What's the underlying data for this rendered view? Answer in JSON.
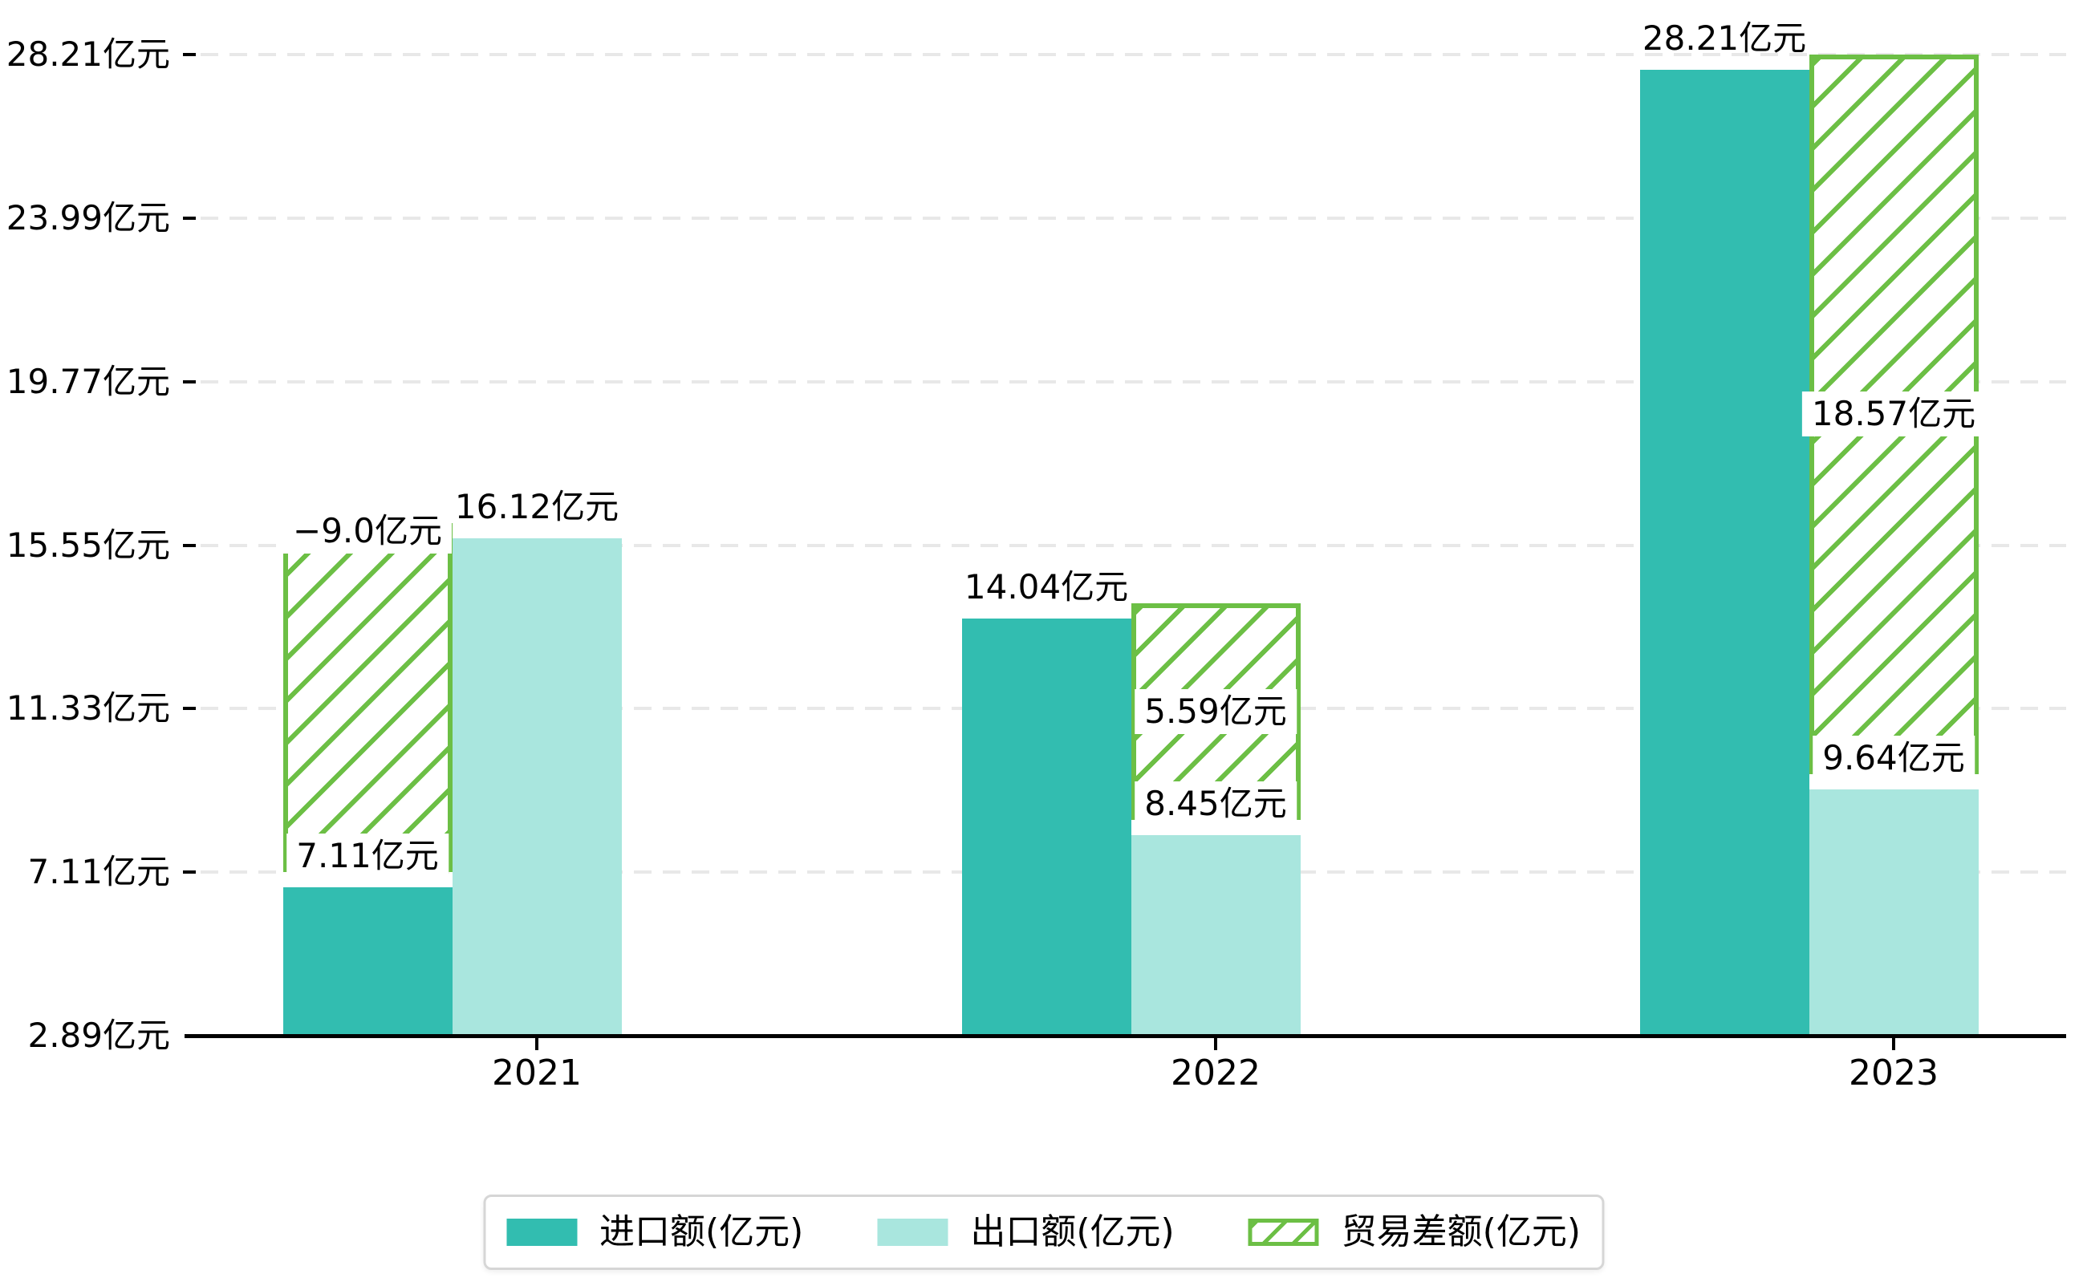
{
  "chart_data": {
    "type": "bar",
    "title": "",
    "categories": [
      "2021",
      "2022",
      "2023"
    ],
    "series": [
      {
        "name": "进口额(亿元)",
        "key": "import",
        "color": "#32bdb0",
        "values": [
          7.11,
          14.04,
          28.21
        ]
      },
      {
        "name": "出口额(亿元)",
        "key": "export",
        "color": "#a9e6de",
        "values": [
          16.12,
          8.45,
          9.64
        ]
      },
      {
        "name": "贸易差额(亿元)",
        "key": "difference",
        "color": "#6cbf45",
        "style": "hatched-bridge",
        "values": [
          -9.0,
          5.59,
          18.57
        ],
        "bridges": [
          {
            "from": 7.11,
            "to": 16.12,
            "slot": "import",
            "label_pos": "top"
          },
          {
            "from": 8.45,
            "to": 14.04,
            "slot": "export",
            "label_pos": "middle"
          },
          {
            "from": 9.64,
            "to": 28.21,
            "slot": "export",
            "label_pos": "middle"
          }
        ]
      }
    ],
    "bar_labels": {
      "import": [
        "7.11亿元",
        "14.04亿元",
        "28.21亿元"
      ],
      "export": [
        "16.12亿元",
        "8.45亿元",
        "9.64亿元"
      ],
      "difference": [
        "−9.0亿元",
        "5.59亿元",
        "18.57亿元"
      ]
    },
    "y_axis": {
      "min": 2.89,
      "max": 28.21,
      "tick_values": [
        2.89,
        7.11,
        11.33,
        15.55,
        19.77,
        23.99,
        28.21
      ],
      "tick_labels": [
        "2.89亿元",
        "7.11亿元",
        "11.33亿元",
        "15.55亿元",
        "19.77亿元",
        "23.99亿元",
        "28.21亿元"
      ]
    },
    "x_axis": {
      "tick_labels": [
        "2021",
        "2022",
        "2023"
      ]
    },
    "grid": {
      "horizontal": true,
      "style": "dashed",
      "color": "#e8e8e8"
    },
    "legend": {
      "position": "bottom",
      "entries": [
        "进口额(亿元)",
        "出口额(亿元)",
        "贸易差额(亿元)"
      ]
    }
  },
  "colors": {
    "import": "#32bdb0",
    "export": "#a9e6de",
    "difference": "#6cbf45",
    "axis": "#000000",
    "text": "#000000",
    "grid": "#e8e8e8",
    "legend_border": "#d6d6d6",
    "background": "#ffffff"
  }
}
